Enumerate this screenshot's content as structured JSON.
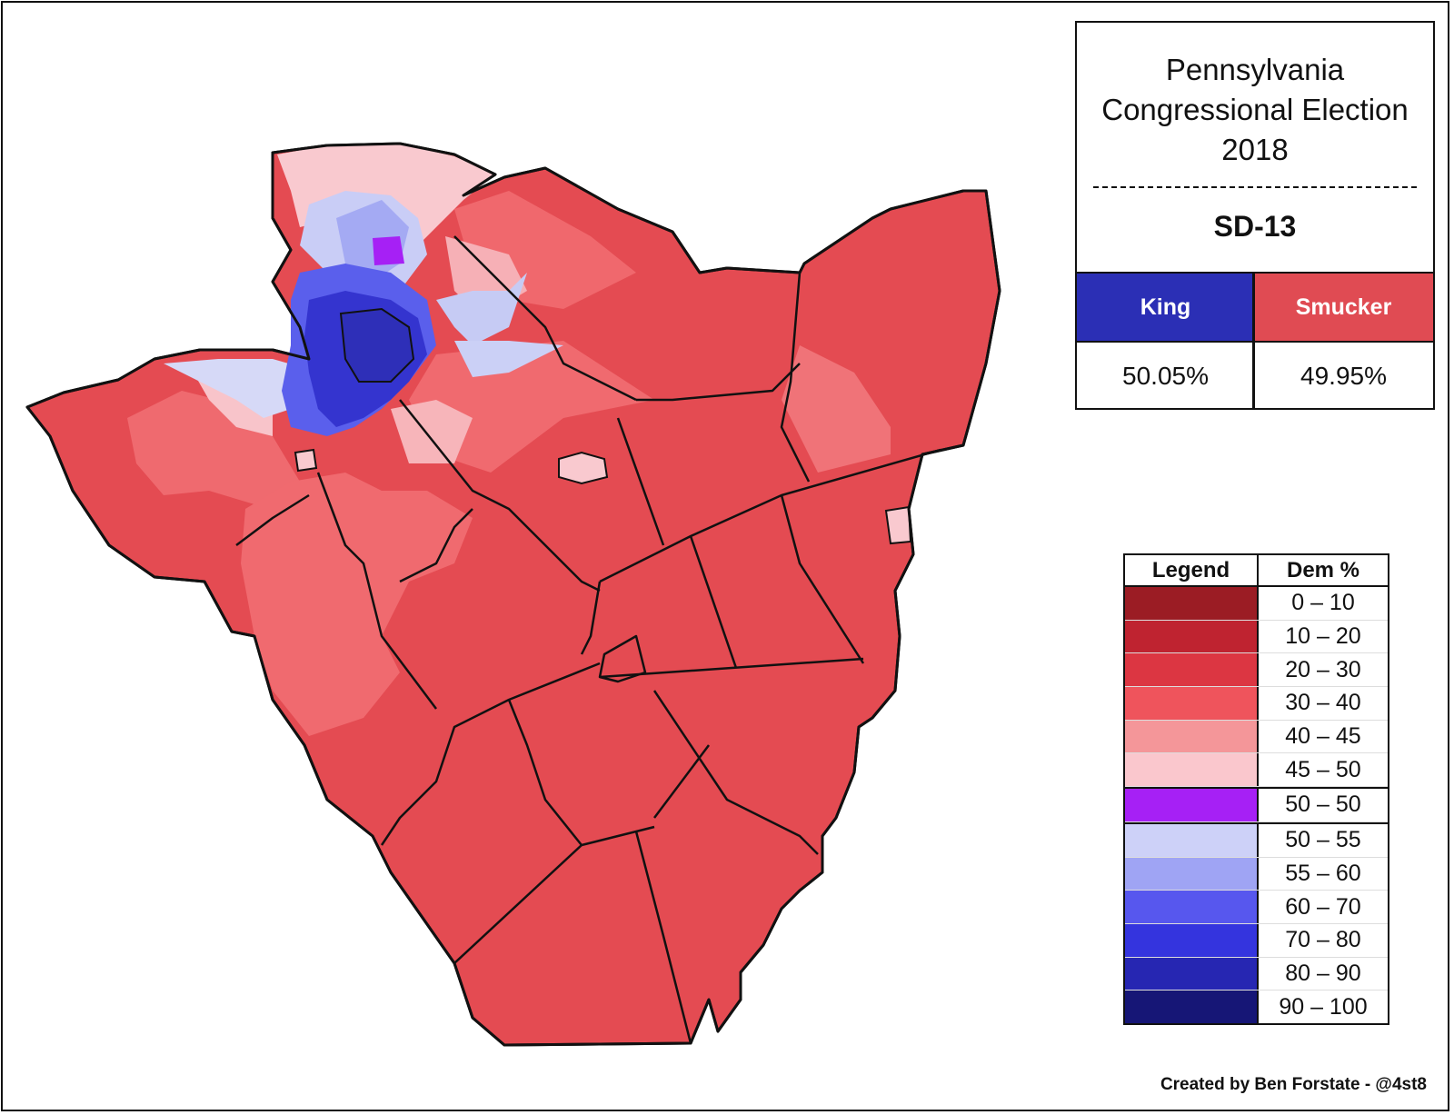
{
  "title": {
    "line1": "Pennsylvania",
    "line2": "Congressional Election",
    "line3": "2018",
    "district": "SD-13"
  },
  "candidates": [
    {
      "name": "King",
      "pct": "50.05%",
      "color": "#2b2fb5"
    },
    {
      "name": "Smucker",
      "pct": "49.95%",
      "color": "#e04b53"
    }
  ],
  "legend": {
    "col1": "Legend",
    "col2": "Dem %",
    "rows": [
      {
        "label": "0 – 10",
        "color": "#9b1c24"
      },
      {
        "label": "10 – 20",
        "color": "#bf2330"
      },
      {
        "label": "20 – 30",
        "color": "#dc3642"
      },
      {
        "label": "30 – 40",
        "color": "#ef545c"
      },
      {
        "label": "40 – 45",
        "color": "#f49699"
      },
      {
        "label": "45 – 50",
        "color": "#fac7cd"
      },
      {
        "label": "50 – 50",
        "color": "#a620f5"
      },
      {
        "label": "50 – 55",
        "color": "#cdd1f8"
      },
      {
        "label": "55 – 60",
        "color": "#9fa4f4"
      },
      {
        "label": "60 – 70",
        "color": "#5757ee"
      },
      {
        "label": "70 – 80",
        "color": "#3434de"
      },
      {
        "label": "80 – 90",
        "color": "#2626b2"
      },
      {
        "label": "90 – 100",
        "color": "#161676"
      }
    ]
  },
  "credit": "Created by Ben Forstate - @4st8"
}
